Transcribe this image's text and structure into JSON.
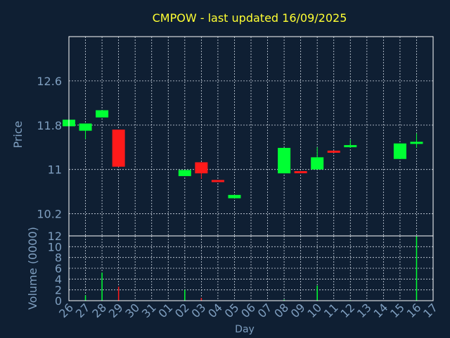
{
  "colors": {
    "background": "#0f1f33",
    "plot_border": "#ffffff",
    "grid": "#cfd8e3",
    "title": "#ffff33",
    "axis_text": "#7f9fc0",
    "up": "#00ff33",
    "down": "#ff1a1a"
  },
  "chart_data": [
    {
      "type": "candlestick",
      "title": "CMPOW - last updated 16/09/2025",
      "ylabel": "Price",
      "xlabel": "",
      "ylim": [
        9.8,
        13.4
      ],
      "yticks": [
        10.2,
        11.0,
        11.8,
        12.6
      ],
      "ytick_labels": [
        "10.2",
        "11",
        "11.8",
        "12.6"
      ],
      "grid": true,
      "candles": [
        {
          "day": "26",
          "open": 11.78,
          "high": 11.9,
          "low": 11.78,
          "close": 11.9
        },
        {
          "day": "27",
          "open": 11.7,
          "high": 11.83,
          "low": 11.55,
          "close": 11.83
        },
        {
          "day": "28",
          "open": 11.94,
          "high": 12.07,
          "low": 11.94,
          "close": 12.07
        },
        {
          "day": "29",
          "open": 11.72,
          "high": 11.72,
          "low": 11.05,
          "close": 11.05
        },
        {
          "day": "02",
          "open": 10.88,
          "high": 10.99,
          "low": 10.88,
          "close": 10.99
        },
        {
          "day": "03",
          "open": 11.13,
          "high": 11.13,
          "low": 10.83,
          "close": 10.93
        },
        {
          "day": "04",
          "open": 10.81,
          "high": 10.81,
          "low": 10.8,
          "close": 10.8
        },
        {
          "day": "05",
          "open": 10.48,
          "high": 10.54,
          "low": 10.48,
          "close": 10.54
        },
        {
          "day": "08",
          "open": 10.93,
          "high": 11.39,
          "low": 10.93,
          "close": 11.39
        },
        {
          "day": "09",
          "open": 10.97,
          "high": 10.97,
          "low": 10.93,
          "close": 10.95
        },
        {
          "day": "10",
          "open": 11.0,
          "high": 11.4,
          "low": 11.0,
          "close": 11.22
        },
        {
          "day": "11",
          "open": 11.34,
          "high": 11.34,
          "low": 11.31,
          "close": 11.31
        },
        {
          "day": "12",
          "open": 11.42,
          "high": 11.54,
          "low": 11.39,
          "close": 11.44
        },
        {
          "day": "15",
          "open": 11.19,
          "high": 11.47,
          "low": 11.19,
          "close": 11.47
        },
        {
          "day": "16",
          "open": 11.47,
          "high": 11.65,
          "low": 11.39,
          "close": 11.5
        }
      ]
    },
    {
      "type": "bar",
      "title": "",
      "ylabel": "Volume (0000)",
      "xlabel": "Day",
      "ylim": [
        0,
        12
      ],
      "yticks": [
        0,
        2,
        4,
        6,
        8,
        10,
        12
      ],
      "grid": true,
      "categories": [
        "26",
        "27",
        "28",
        "29",
        "30",
        "31",
        "01",
        "02",
        "03",
        "04",
        "05",
        "06",
        "07",
        "08",
        "09",
        "10",
        "11",
        "12",
        "13",
        "14",
        "15",
        "16",
        "17"
      ],
      "values": [
        0,
        1.0,
        5.2,
        2.6,
        0,
        0,
        0,
        2.0,
        0.5,
        0,
        0,
        0,
        0,
        0.2,
        0,
        2.8,
        0,
        0.1,
        0,
        0,
        0,
        12.0,
        0
      ],
      "bar_colors": [
        "#00ff33",
        "#00ff33",
        "#00ff33",
        "#ff1a1a",
        "#00ff33",
        "#00ff33",
        "#00ff33",
        "#00ff33",
        "#ff1a1a",
        "#00ff33",
        "#00ff33",
        "#00ff33",
        "#00ff33",
        "#00ff33",
        "#ff1a1a",
        "#00ff33",
        "#ff1a1a",
        "#00ff33",
        "#00ff33",
        "#00ff33",
        "#00ff33",
        "#00ff33",
        "#00ff33"
      ]
    }
  ]
}
